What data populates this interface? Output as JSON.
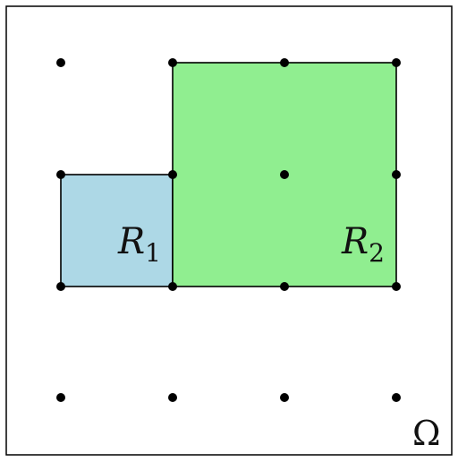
{
  "labels": {
    "r1": {
      "letter": "R",
      "subscript": "1"
    },
    "r2": {
      "letter": "R",
      "subscript": "2"
    },
    "domain": "Ω"
  },
  "colors": {
    "r1_fill": "#add8e6",
    "r2_fill": "#90ee90",
    "stroke": "#000000",
    "dot": "#000000",
    "background": "#ffffff"
  },
  "grid": {
    "columns": 4,
    "rows": 4
  },
  "regions": [
    {
      "id": "R1",
      "grid_cells": {
        "col_from": 0,
        "col_to": 1,
        "row_from": 1,
        "row_to": 2
      }
    },
    {
      "id": "R2",
      "grid_cells": {
        "col_from": 1,
        "col_to": 3,
        "row_from": 0,
        "row_to": 2
      }
    }
  ]
}
